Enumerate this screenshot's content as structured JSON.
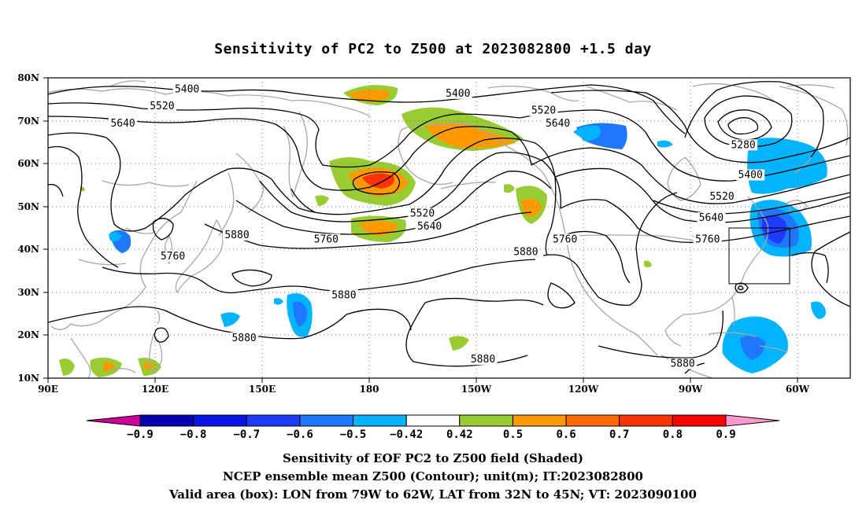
{
  "title": "Sensitivity of PC2 to Z500 at 2023082800 +1.5 day",
  "lat_labels": [
    "80N",
    "70N",
    "60N",
    "50N",
    "40N",
    "30N",
    "20N",
    "10N"
  ],
  "lon_labels": [
    "90E",
    "120E",
    "150E",
    "180",
    "150W",
    "120W",
    "90W",
    "60W"
  ],
  "contour_labels": [
    {
      "text": "5400",
      "lon": 129,
      "lat": 77
    },
    {
      "text": "5400",
      "lon": -155,
      "lat": 76
    },
    {
      "text": "5520",
      "lon": 122,
      "lat": 73
    },
    {
      "text": "5640",
      "lon": 111,
      "lat": 69
    },
    {
      "text": "5520",
      "lon": -131,
      "lat": 72
    },
    {
      "text": "5640",
      "lon": -127,
      "lat": 69
    },
    {
      "text": "5280",
      "lon": -75,
      "lat": 64
    },
    {
      "text": "5400",
      "lon": -73,
      "lat": 57
    },
    {
      "text": "5520",
      "lon": -81,
      "lat": 52
    },
    {
      "text": "5640",
      "lon": -84,
      "lat": 47
    },
    {
      "text": "5760",
      "lon": -85,
      "lat": 42
    },
    {
      "text": "5520",
      "lon": -165,
      "lat": 48
    },
    {
      "text": "5640",
      "lon": -163,
      "lat": 45
    },
    {
      "text": "5760",
      "lon": 125,
      "lat": 38
    },
    {
      "text": "5880",
      "lon": 143,
      "lat": 43
    },
    {
      "text": "5760",
      "lon": 168,
      "lat": 42
    },
    {
      "text": "5880",
      "lon": 173,
      "lat": 29
    },
    {
      "text": "5880",
      "lon": 145,
      "lat": 19
    },
    {
      "text": "5760",
      "lon": -125,
      "lat": 42
    },
    {
      "text": "5880",
      "lon": -136,
      "lat": 39
    },
    {
      "text": "5880",
      "lon": -148,
      "lat": 14
    },
    {
      "text": "5880",
      "lon": -92,
      "lat": 13
    }
  ],
  "colorbar": {
    "labels": [
      "−0.9",
      "−0.8",
      "−0.7",
      "−0.6",
      "−0.5",
      "−0.42",
      "0.42",
      "0.5",
      "0.6",
      "0.7",
      "0.8",
      "0.9"
    ],
    "colors": [
      "#cc0099",
      "#0000b3",
      "#0a14e6",
      "#1e3cff",
      "#1e78ff",
      "#00b4ff",
      "#ffffff",
      "#99cc33",
      "#ff9900",
      "#ff6a00",
      "#ff3300",
      "#ff0000",
      "#ff99cc"
    ]
  },
  "captions": [
    "Sensitivity of EOF PC2 to Z500 field (Shaded)",
    "NCEP ensemble mean Z500 (Contour); unit(m); IT:2023082800",
    "Valid area (box): LON from 79W to 62W, LAT from 32N to 45N; VT: 2023090100"
  ],
  "valid_box": {
    "lon_west": -79,
    "lon_east": -62,
    "lat_south": 32,
    "lat_north": 45
  },
  "map_extent": {
    "lon_min": 90,
    "lon_max": 315,
    "lat_min": 10,
    "lat_max": 80
  }
}
